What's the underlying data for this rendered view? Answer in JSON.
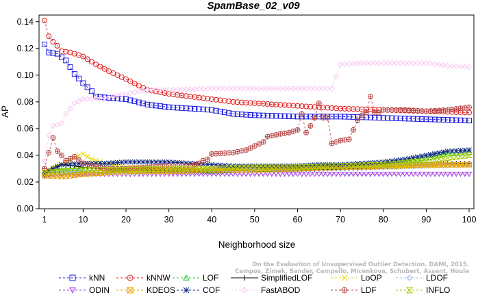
{
  "chart_data": {
    "type": "line",
    "title": "SpamBase_02_v09",
    "xlabel": "Neighborhood size",
    "ylabel": "AP",
    "xlim": [
      0,
      101
    ],
    "ylim": [
      0.0,
      0.145
    ],
    "xticks": [
      1,
      10,
      20,
      30,
      40,
      50,
      60,
      70,
      80,
      90,
      100
    ],
    "yticks": [
      0.0,
      0.02,
      0.04,
      0.06,
      0.08,
      0.1,
      0.12,
      0.14
    ],
    "ytick_labels": [
      "0.00",
      "0.02",
      "0.04",
      "0.06",
      "0.08",
      "0.10",
      "0.12",
      "0.14"
    ],
    "grid": false,
    "legend_position": "bottom",
    "series": [
      {
        "name": "kNN",
        "color": "#1a1ae0",
        "marker": "square",
        "dash": "3,3",
        "points": [
          [
            1,
            0.123
          ],
          [
            2,
            0.117
          ],
          [
            4,
            0.116
          ],
          [
            6,
            0.111
          ],
          [
            8,
            0.101
          ],
          [
            10,
            0.094
          ],
          [
            12,
            0.088
          ],
          [
            13,
            0.084
          ],
          [
            16,
            0.083
          ],
          [
            20,
            0.082
          ],
          [
            25,
            0.078
          ],
          [
            30,
            0.076
          ],
          [
            35,
            0.075
          ],
          [
            40,
            0.074
          ],
          [
            45,
            0.071
          ],
          [
            50,
            0.07
          ],
          [
            60,
            0.069
          ],
          [
            70,
            0.069
          ],
          [
            80,
            0.068
          ],
          [
            90,
            0.067
          ],
          [
            100,
            0.066
          ]
        ]
      },
      {
        "name": "kNNW",
        "color": "#e01a1a",
        "marker": "circle",
        "dash": "3,3",
        "points": [
          [
            1,
            0.141
          ],
          [
            2,
            0.129
          ],
          [
            3,
            0.125
          ],
          [
            4,
            0.122
          ],
          [
            5,
            0.118
          ],
          [
            7,
            0.117
          ],
          [
            10,
            0.114
          ],
          [
            13,
            0.108
          ],
          [
            16,
            0.103
          ],
          [
            20,
            0.097
          ],
          [
            25,
            0.089
          ],
          [
            30,
            0.086
          ],
          [
            35,
            0.084
          ],
          [
            40,
            0.082
          ],
          [
            45,
            0.08
          ],
          [
            50,
            0.079
          ],
          [
            60,
            0.077
          ],
          [
            70,
            0.075
          ],
          [
            80,
            0.074
          ],
          [
            90,
            0.073
          ],
          [
            100,
            0.072
          ]
        ]
      },
      {
        "name": "LOF",
        "color": "#22c022",
        "marker": "triangle-up",
        "dash": "3,3",
        "points": [
          [
            1,
            0.027
          ],
          [
            4,
            0.029
          ],
          [
            8,
            0.03
          ],
          [
            10,
            0.029
          ],
          [
            15,
            0.028
          ],
          [
            20,
            0.029
          ],
          [
            30,
            0.029
          ],
          [
            40,
            0.028
          ],
          [
            50,
            0.029
          ],
          [
            60,
            0.03
          ],
          [
            70,
            0.031
          ],
          [
            75,
            0.032
          ],
          [
            80,
            0.033
          ],
          [
            85,
            0.035
          ],
          [
            90,
            0.038
          ],
          [
            95,
            0.041
          ],
          [
            100,
            0.042
          ]
        ]
      },
      {
        "name": "SimplifiedLOF",
        "color": "#000000",
        "marker": "plus",
        "dash": "",
        "points": [
          [
            1,
            0.026
          ],
          [
            3,
            0.031
          ],
          [
            5,
            0.033
          ],
          [
            8,
            0.032
          ],
          [
            10,
            0.031
          ],
          [
            15,
            0.03
          ],
          [
            20,
            0.029
          ],
          [
            30,
            0.028
          ],
          [
            40,
            0.028
          ],
          [
            50,
            0.029
          ],
          [
            60,
            0.029
          ],
          [
            70,
            0.03
          ],
          [
            75,
            0.03
          ],
          [
            80,
            0.031
          ],
          [
            85,
            0.032
          ],
          [
            90,
            0.033
          ],
          [
            95,
            0.034
          ],
          [
            100,
            0.034
          ]
        ]
      },
      {
        "name": "LoOP",
        "color": "#e8d800",
        "marker": "x",
        "dash": "3,3",
        "points": [
          [
            1,
            0.028
          ],
          [
            4,
            0.032
          ],
          [
            7,
            0.036
          ],
          [
            9,
            0.04
          ],
          [
            10,
            0.041
          ],
          [
            12,
            0.037
          ],
          [
            15,
            0.034
          ],
          [
            20,
            0.031
          ],
          [
            30,
            0.03
          ],
          [
            40,
            0.03
          ],
          [
            50,
            0.03
          ],
          [
            60,
            0.03
          ],
          [
            70,
            0.031
          ],
          [
            80,
            0.031
          ],
          [
            90,
            0.032
          ],
          [
            100,
            0.033
          ]
        ]
      },
      {
        "name": "LDOF",
        "color": "#a0b8f0",
        "marker": "diamond",
        "dash": "3,3",
        "points": [
          [
            1,
            0.024
          ],
          [
            5,
            0.027
          ],
          [
            10,
            0.028
          ],
          [
            20,
            0.028
          ],
          [
            30,
            0.028
          ],
          [
            40,
            0.029
          ],
          [
            50,
            0.03
          ],
          [
            60,
            0.03
          ],
          [
            70,
            0.03
          ],
          [
            80,
            0.031
          ],
          [
            90,
            0.032
          ],
          [
            100,
            0.033
          ]
        ]
      },
      {
        "name": "ODIN",
        "color": "#a040e0",
        "marker": "triangle-down",
        "dash": "3,3",
        "points": [
          [
            1,
            0.025
          ],
          [
            5,
            0.026
          ],
          [
            10,
            0.026
          ],
          [
            20,
            0.026
          ],
          [
            30,
            0.026
          ],
          [
            40,
            0.026
          ],
          [
            50,
            0.026
          ],
          [
            60,
            0.026
          ],
          [
            70,
            0.026
          ],
          [
            80,
            0.026
          ],
          [
            90,
            0.026
          ],
          [
            100,
            0.026
          ]
        ]
      },
      {
        "name": "KDEOS",
        "color": "#e8a000",
        "marker": "square-x",
        "dash": "3,3",
        "points": [
          [
            1,
            0.025
          ],
          [
            5,
            0.024
          ],
          [
            10,
            0.026
          ],
          [
            15,
            0.027
          ],
          [
            20,
            0.028
          ],
          [
            30,
            0.028
          ],
          [
            40,
            0.029
          ],
          [
            50,
            0.029
          ],
          [
            60,
            0.03
          ],
          [
            70,
            0.031
          ],
          [
            80,
            0.032
          ],
          [
            90,
            0.033
          ],
          [
            100,
            0.033
          ]
        ]
      },
      {
        "name": "COF",
        "color": "#102a80",
        "marker": "star",
        "dash": "3,3",
        "points": [
          [
            1,
            0.027
          ],
          [
            3,
            0.03
          ],
          [
            5,
            0.033
          ],
          [
            10,
            0.034
          ],
          [
            15,
            0.034
          ],
          [
            20,
            0.035
          ],
          [
            25,
            0.035
          ],
          [
            30,
            0.035
          ],
          [
            35,
            0.034
          ],
          [
            40,
            0.033
          ],
          [
            45,
            0.032
          ],
          [
            50,
            0.032
          ],
          [
            55,
            0.032
          ],
          [
            60,
            0.032
          ],
          [
            65,
            0.033
          ],
          [
            70,
            0.033
          ],
          [
            75,
            0.034
          ],
          [
            80,
            0.035
          ],
          [
            85,
            0.037
          ],
          [
            90,
            0.04
          ],
          [
            95,
            0.043
          ],
          [
            100,
            0.044
          ]
        ]
      },
      {
        "name": "FastABOD",
        "color": "#f8c8f0",
        "marker": "diamond",
        "dash": "3,3",
        "points": [
          [
            1,
            0.036
          ],
          [
            2,
            0.055
          ],
          [
            3,
            0.062
          ],
          [
            4,
            0.063
          ],
          [
            5,
            0.064
          ],
          [
            6,
            0.071
          ],
          [
            7,
            0.075
          ],
          [
            8,
            0.079
          ],
          [
            10,
            0.082
          ],
          [
            15,
            0.083
          ],
          [
            20,
            0.086
          ],
          [
            25,
            0.089
          ],
          [
            30,
            0.089
          ],
          [
            40,
            0.09
          ],
          [
            50,
            0.09
          ],
          [
            60,
            0.09
          ],
          [
            68,
            0.09
          ],
          [
            70,
            0.108
          ],
          [
            75,
            0.109
          ],
          [
            80,
            0.109
          ],
          [
            85,
            0.109
          ],
          [
            90,
            0.109
          ],
          [
            95,
            0.107
          ],
          [
            100,
            0.106
          ]
        ]
      },
      {
        "name": "LDF",
        "color": "#b84848",
        "marker": "circle-plus",
        "dash": "3,3",
        "points": [
          [
            1,
            0.03
          ],
          [
            2,
            0.042
          ],
          [
            3,
            0.053
          ],
          [
            4,
            0.043
          ],
          [
            5,
            0.04
          ],
          [
            6,
            0.036
          ],
          [
            8,
            0.039
          ],
          [
            10,
            0.034
          ],
          [
            15,
            0.03
          ],
          [
            20,
            0.03
          ],
          [
            25,
            0.031
          ],
          [
            30,
            0.032
          ],
          [
            35,
            0.032
          ],
          [
            37,
            0.034
          ],
          [
            38,
            0.036
          ],
          [
            39,
            0.037
          ],
          [
            40,
            0.041
          ],
          [
            45,
            0.042
          ],
          [
            48,
            0.044
          ],
          [
            50,
            0.047
          ],
          [
            52,
            0.05
          ],
          [
            53,
            0.054
          ],
          [
            56,
            0.056
          ],
          [
            58,
            0.057
          ],
          [
            60,
            0.059
          ],
          [
            61,
            0.071
          ],
          [
            62,
            0.057
          ],
          [
            63,
            0.062
          ],
          [
            64,
            0.068
          ],
          [
            65,
            0.079
          ],
          [
            66,
            0.068
          ],
          [
            67,
            0.068
          ],
          [
            68,
            0.049
          ],
          [
            70,
            0.051
          ],
          [
            72,
            0.052
          ],
          [
            73,
            0.059
          ],
          [
            74,
            0.066
          ],
          [
            75,
            0.07
          ],
          [
            76,
            0.072
          ],
          [
            77,
            0.084
          ],
          [
            78,
            0.072
          ],
          [
            79,
            0.072
          ],
          [
            80,
            0.074
          ],
          [
            85,
            0.074
          ],
          [
            90,
            0.073
          ],
          [
            95,
            0.074
          ],
          [
            100,
            0.076
          ]
        ]
      },
      {
        "name": "INFLO",
        "color": "#a8c800",
        "marker": "hourglass",
        "dash": "3,3",
        "points": [
          [
            1,
            0.027
          ],
          [
            5,
            0.028
          ],
          [
            10,
            0.029
          ],
          [
            20,
            0.029
          ],
          [
            30,
            0.03
          ],
          [
            40,
            0.03
          ],
          [
            50,
            0.031
          ],
          [
            60,
            0.031
          ],
          [
            70,
            0.032
          ],
          [
            80,
            0.033
          ],
          [
            90,
            0.036
          ],
          [
            100,
            0.04
          ]
        ]
      }
    ],
    "legend": [
      {
        "name": "kNN",
        "row": 0,
        "col": 0
      },
      {
        "name": "kNNW",
        "row": 0,
        "col": 1
      },
      {
        "name": "LOF",
        "row": 0,
        "col": 2
      },
      {
        "name": "SimplifiedLOF",
        "row": 0,
        "col": 3
      },
      {
        "name": "LoOP",
        "row": 0,
        "col": 4
      },
      {
        "name": "LDOF",
        "row": 0,
        "col": 5
      },
      {
        "name": "ODIN",
        "row": 1,
        "col": 0
      },
      {
        "name": "KDEOS",
        "row": 1,
        "col": 1
      },
      {
        "name": "COF",
        "row": 1,
        "col": 2
      },
      {
        "name": "FastABOD",
        "row": 1,
        "col": 3
      },
      {
        "name": "LDF",
        "row": 1,
        "col": 4
      },
      {
        "name": "INFLO",
        "row": 1,
        "col": 5
      }
    ]
  },
  "watermark": {
    "line1": "On the Evaluation of Unsupervised Outlier Detection. DAMI, 2015.",
    "line2": "Campos, Zimek, Sander, Campello, Micenkova, Schubert, Assent, Houle"
  }
}
